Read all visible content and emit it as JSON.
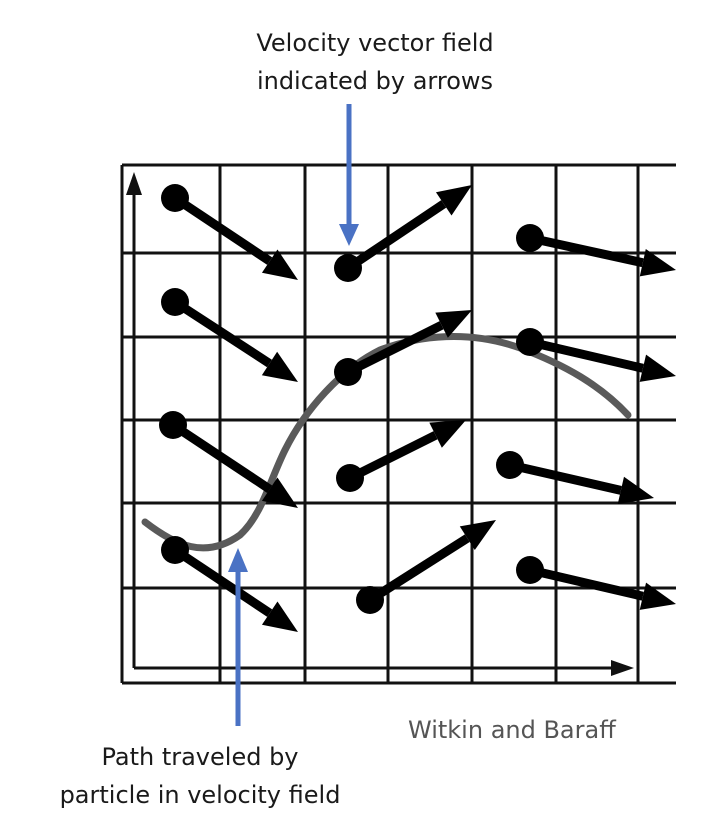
{
  "annotations": {
    "velocity_field_line1": "Velocity vector field",
    "velocity_field_line2": "indicated by arrows",
    "path_line1": "Path traveled by",
    "path_line2": "particle in velocity field",
    "credit": "Witkin and Baraff"
  },
  "colors": {
    "grid": "#111111",
    "vector": "#000000",
    "path": "#5a5a5a",
    "callout_arrow": "#4a72c4",
    "credit_text": "#555555"
  },
  "icons": {
    "vector_marker": "filled-circle-with-arrow",
    "callout": "blue-arrow"
  }
}
